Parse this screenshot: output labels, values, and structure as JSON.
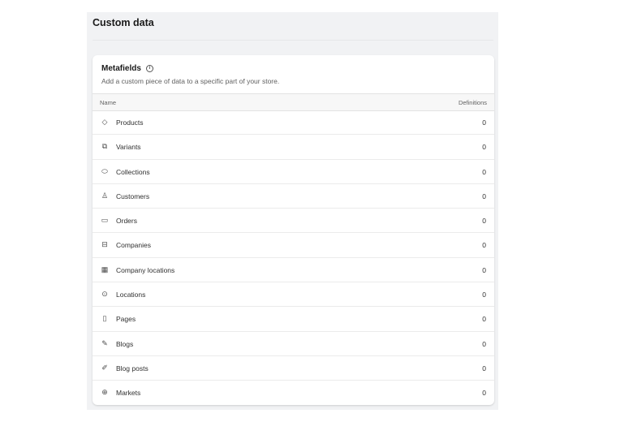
{
  "page": {
    "title": "Custom data"
  },
  "metafields": {
    "title": "Metafields",
    "subtitle": "Add a custom piece of data to a specific part of your store.",
    "columns": {
      "name": "Name",
      "definitions": "Definitions"
    },
    "rows": [
      {
        "label": "Products",
        "count": "0",
        "icon": "tag-icon",
        "glyph": "◇"
      },
      {
        "label": "Variants",
        "count": "0",
        "icon": "variants-icon",
        "glyph": "⧉"
      },
      {
        "label": "Collections",
        "count": "0",
        "icon": "collection-icon",
        "glyph": "⬭"
      },
      {
        "label": "Customers",
        "count": "0",
        "icon": "person-icon",
        "glyph": "♙"
      },
      {
        "label": "Orders",
        "count": "0",
        "icon": "inbox-icon",
        "glyph": "▭"
      },
      {
        "label": "Companies",
        "count": "0",
        "icon": "briefcase-icon",
        "glyph": "⊟"
      },
      {
        "label": "Company locations",
        "count": "0",
        "icon": "building-icon",
        "glyph": "▦"
      },
      {
        "label": "Locations",
        "count": "0",
        "icon": "location-pin-icon",
        "glyph": "⊙"
      },
      {
        "label": "Pages",
        "count": "0",
        "icon": "page-icon",
        "glyph": "▯"
      },
      {
        "label": "Blogs",
        "count": "0",
        "icon": "blog-icon",
        "glyph": "✎"
      },
      {
        "label": "Blog posts",
        "count": "0",
        "icon": "pencil-icon",
        "glyph": "✐"
      },
      {
        "label": "Markets",
        "count": "0",
        "icon": "globe-icon",
        "glyph": "⊕"
      }
    ]
  }
}
